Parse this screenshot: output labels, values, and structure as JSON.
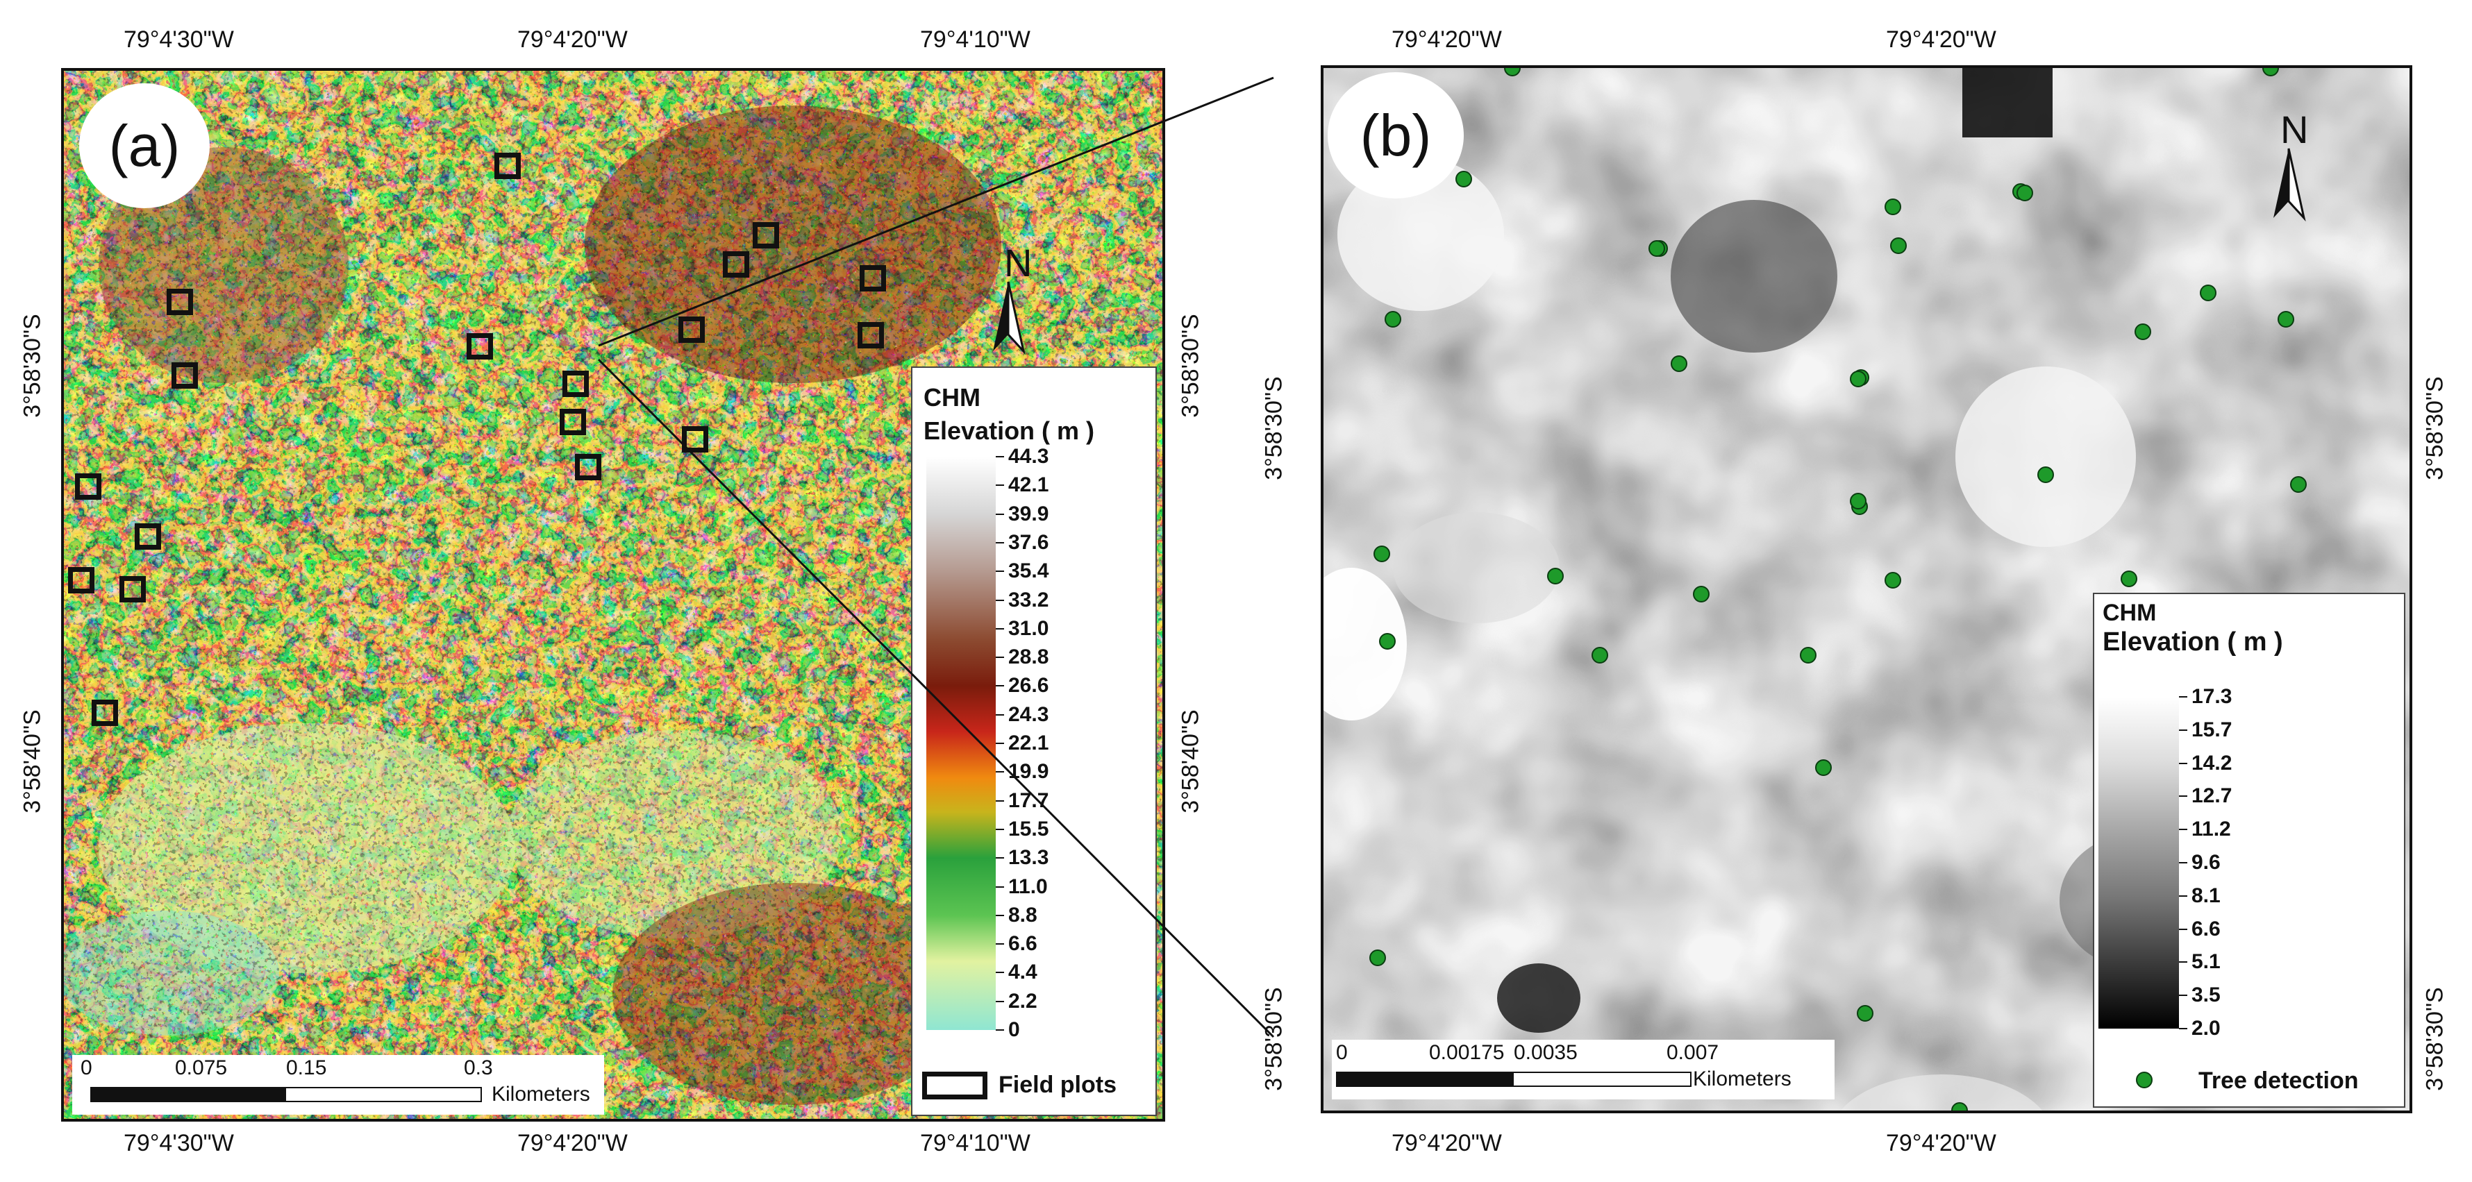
{
  "panel_a": {
    "label": "(a)",
    "top_coords": [
      "79°4'30\"W",
      "79°4'20\"W",
      "79°4'10\"W"
    ],
    "bottom_coords": [
      "79°4'30\"W",
      "79°4'20\"W",
      "79°4'10\"W"
    ],
    "left_coords": [
      "3°58'30\"S",
      "3°58'40\"S"
    ],
    "right_coords": [
      "3°58'30\"S",
      "3°58'40\"S"
    ],
    "legend": {
      "title": "CHM",
      "subtitle": "Elevation ( m )",
      "ticks": [
        "44.3",
        "42.1",
        "39.9",
        "37.6",
        "35.4",
        "33.2",
        "31.0",
        "28.8",
        "26.6",
        "24.3",
        "22.1",
        "19.9",
        "17.7",
        "15.5",
        "13.3",
        "11.0",
        "8.8",
        "6.6",
        "4.4",
        "2.2",
        "0"
      ],
      "plots_label": "Field plots"
    },
    "scale": {
      "ticks": [
        "0",
        "0.075",
        "0.15",
        "0.3"
      ],
      "unit": "Kilometers"
    },
    "north": "N",
    "field_plot_count": 18
  },
  "panel_b": {
    "label": "(b)",
    "top_coords": [
      "79°4'20\"W",
      "79°4'20\"W"
    ],
    "bottom_coords": [
      "79°4'20\"W",
      "79°4'20\"W"
    ],
    "left_coords": [
      "3°58'30\"S",
      "3°58'30\"S"
    ],
    "right_coords": [
      "3°58'30\"S",
      "3°58'30\"S"
    ],
    "legend": {
      "title": "CHM",
      "subtitle": "Elevation ( m )",
      "ticks": [
        "17.3",
        "15.7",
        "14.2",
        "12.7",
        "11.2",
        "9.6",
        "8.1",
        "6.6",
        "5.1",
        "3.5",
        "2.0"
      ],
      "tree_label": "Tree detection"
    },
    "scale": {
      "ticks": [
        "0",
        "0.00175",
        "0.0035",
        "0.007"
      ],
      "unit": "Kilometers"
    },
    "north": "N",
    "tree_detection_count": 32
  },
  "colors": {
    "chm_ramp": [
      "#ffffff",
      "#d9d9d9",
      "#b99a8e",
      "#8c4a30",
      "#7a1c0c",
      "#c8261a",
      "#f08a10",
      "#c8b41c",
      "#2aa13c",
      "#5cc452",
      "#d9f0a0",
      "#8fe6d2"
    ],
    "tree_dot": "#1e9a2a"
  }
}
